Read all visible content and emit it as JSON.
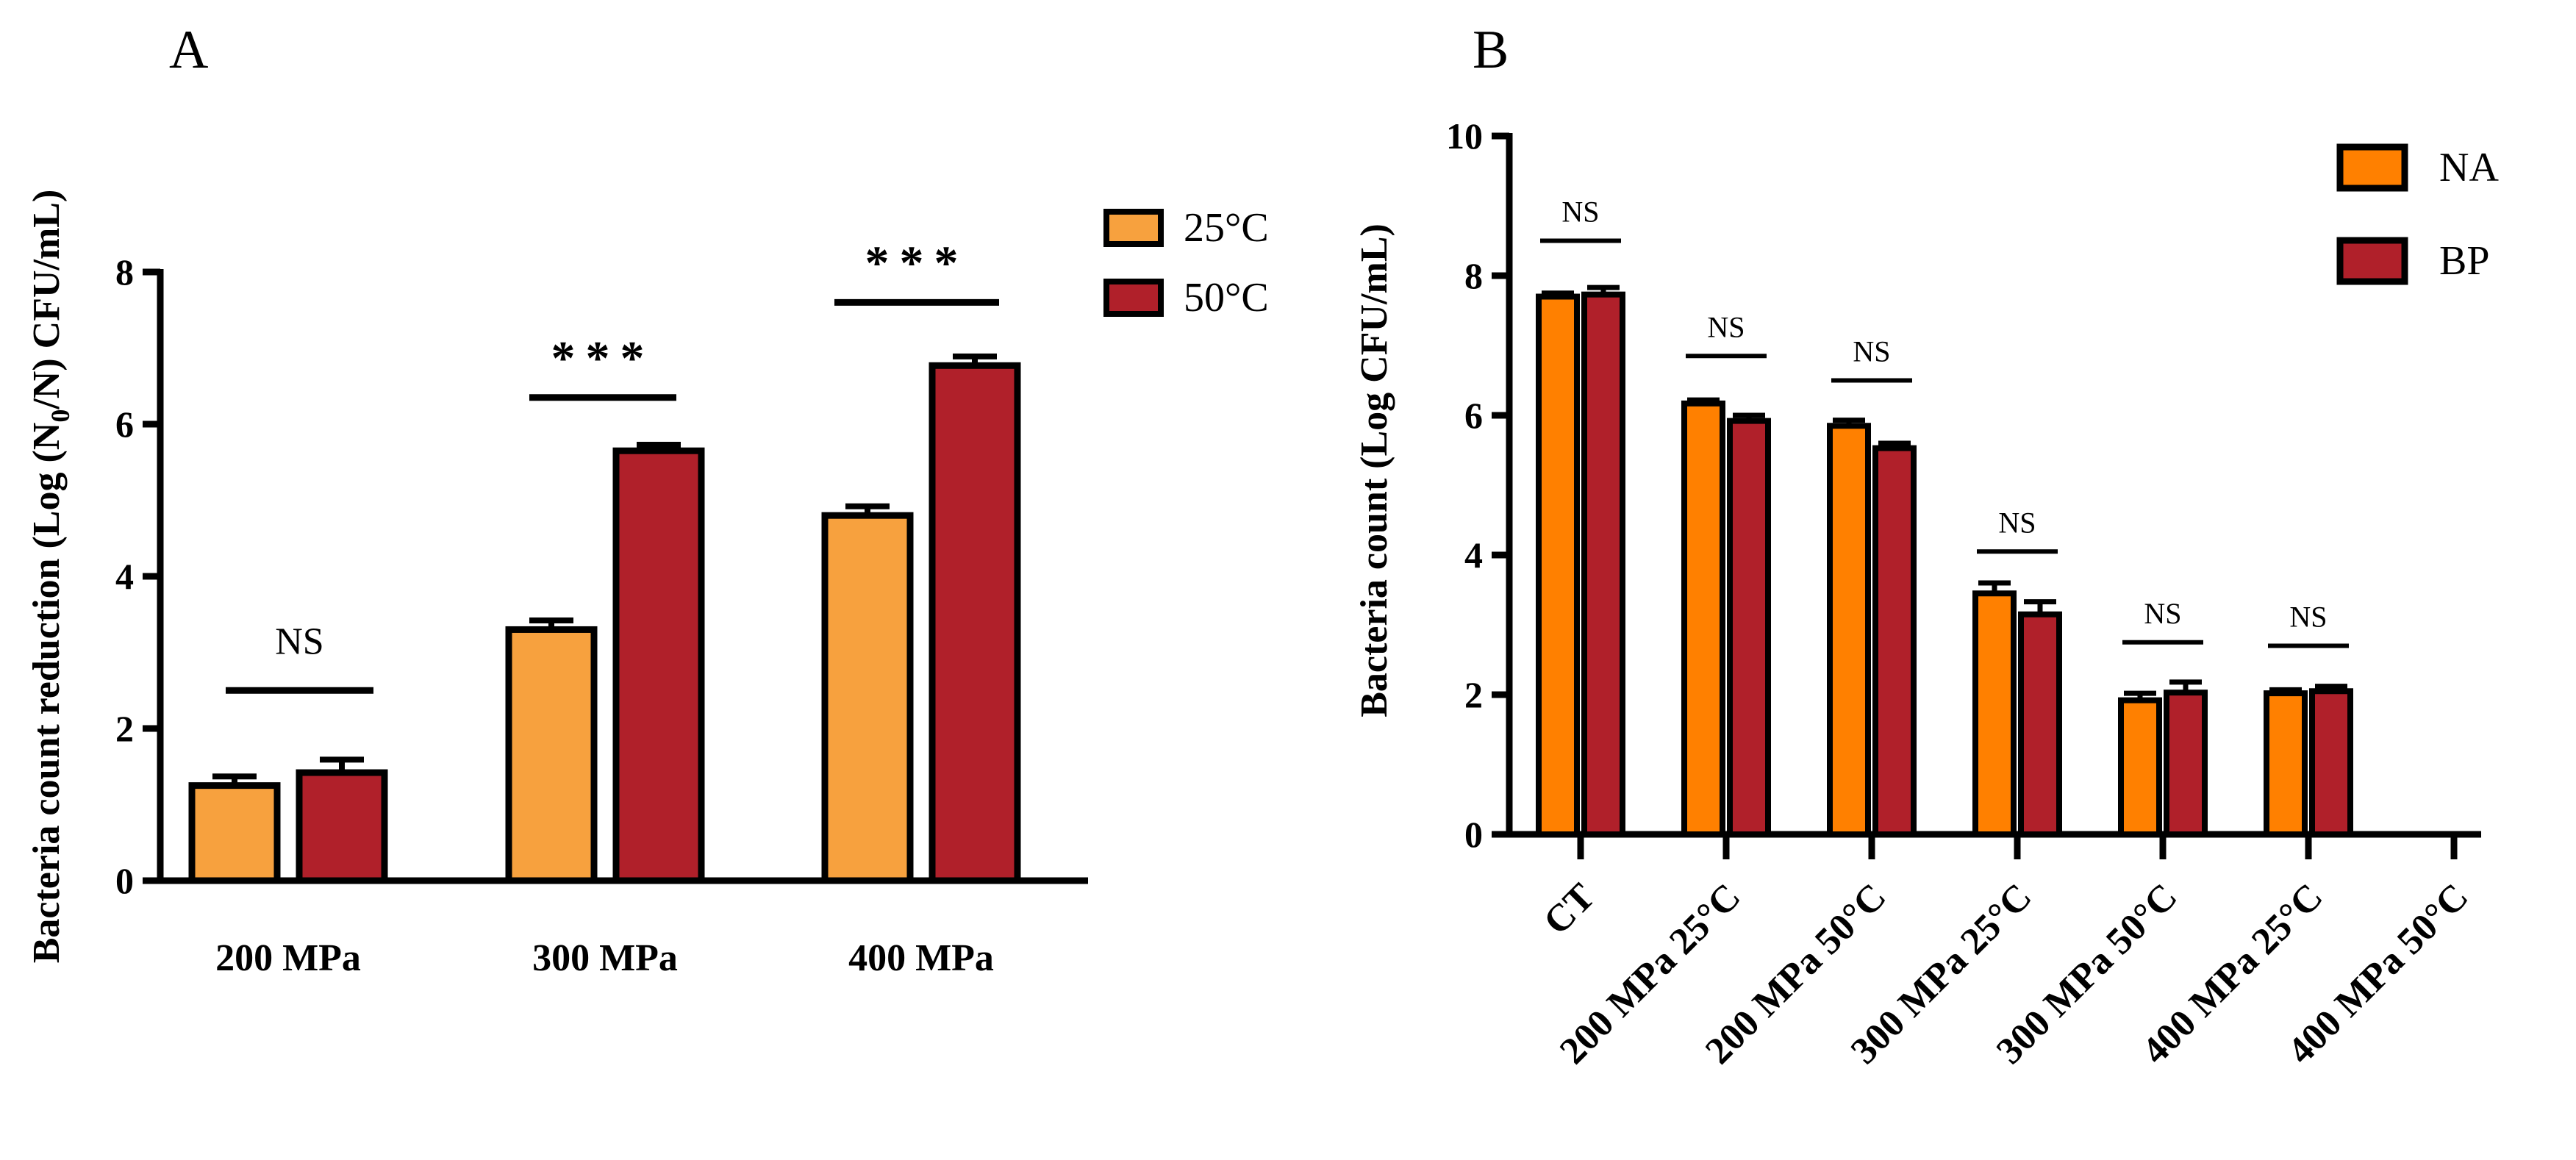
{
  "panels": {
    "a_label": "A",
    "b_label": "B"
  },
  "chart_data": [
    {
      "type": "bar",
      "panel": "A",
      "ylabel_parts": [
        "Bacteria count reduction (Log (N",
        "0",
        "/N) CFU/mL)"
      ],
      "ylim": [
        0,
        8
      ],
      "yticks": [
        "0",
        "2",
        "4",
        "6",
        "8"
      ],
      "categories": [
        "200 MPa",
        "300 MPa",
        "400 MPa"
      ],
      "series": [
        {
          "name": "25°C",
          "color": "#F7A13E",
          "values": [
            1.25,
            3.3,
            4.8
          ],
          "errors": [
            0.12,
            0.12,
            0.12
          ]
        },
        {
          "name": "50°C",
          "color": "#B0202A",
          "values": [
            1.42,
            5.65,
            6.77
          ],
          "errors": [
            0.17,
            0.08,
            0.12
          ]
        }
      ],
      "significance": [
        {
          "label": "NS",
          "y": 2.5
        },
        {
          "label": "***",
          "y": 6.35
        },
        {
          "label": "***",
          "y": 7.6
        }
      ],
      "legend_position": "top-right",
      "grid": false
    },
    {
      "type": "bar",
      "panel": "B",
      "ylabel": "Bacteria count (Log CFU/mL)",
      "ylim": [
        0,
        10
      ],
      "yticks": [
        "0",
        "2",
        "4",
        "6",
        "8",
        "10"
      ],
      "categories": [
        "CT",
        "200 MPa 25°C",
        "200 MPa 50°C",
        "300 MPa 25°C",
        "300 MPa 50°C",
        "400 MPa 25°C",
        "400 MPa 50°C"
      ],
      "series": [
        {
          "name": "NA",
          "color": "#FF8000",
          "values": [
            7.7,
            6.17,
            5.85,
            3.45,
            1.92,
            2.02,
            0
          ],
          "errors": [
            0.05,
            0.05,
            0.08,
            0.15,
            0.1,
            0.05,
            0
          ]
        },
        {
          "name": "BP",
          "color": "#B0202A",
          "values": [
            7.73,
            5.92,
            5.53,
            3.15,
            2.03,
            2.05,
            0
          ],
          "errors": [
            0.1,
            0.08,
            0.07,
            0.18,
            0.15,
            0.07,
            0
          ]
        }
      ],
      "significance": [
        {
          "label": "NS",
          "y": 8.5
        },
        {
          "label": "NS",
          "y": 6.85
        },
        {
          "label": "NS",
          "y": 6.5
        },
        {
          "label": "NS",
          "y": 4.05
        },
        {
          "label": "NS",
          "y": 2.75
        },
        {
          "label": "NS",
          "y": 2.7
        }
      ],
      "legend_position": "top-right",
      "grid": false
    }
  ]
}
